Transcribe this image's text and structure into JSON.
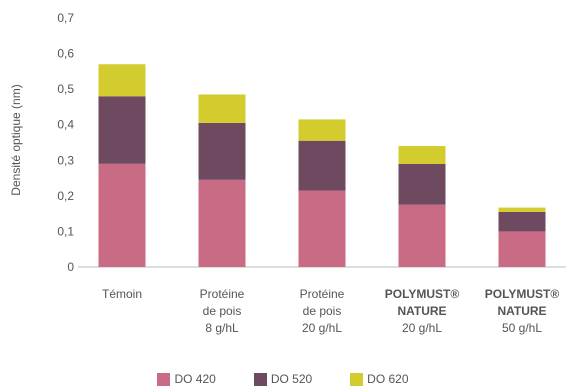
{
  "chart_data": {
    "type": "bar",
    "stacked": true,
    "ylabel": "Densité optique (nm)",
    "ylim": [
      0,
      0.7
    ],
    "yticks": [
      "0",
      "0,1",
      "0,2",
      "0,3",
      "0,4",
      "0,5",
      "0,6",
      "0,7"
    ],
    "categories": [
      {
        "lines": [
          {
            "text": "Témoin",
            "bold": false
          }
        ]
      },
      {
        "lines": [
          {
            "text": "Protéine",
            "bold": false
          },
          {
            "text": "de pois",
            "bold": false
          },
          {
            "text": "8 g/hL",
            "bold": false
          }
        ]
      },
      {
        "lines": [
          {
            "text": "Protéine",
            "bold": false
          },
          {
            "text": "de pois",
            "bold": false
          },
          {
            "text": "20 g/hL",
            "bold": false
          }
        ]
      },
      {
        "lines": [
          {
            "text": "POLYMUST®",
            "bold": true
          },
          {
            "text": "NATURE",
            "bold": true
          },
          {
            "text": "20 g/hL",
            "bold": false
          }
        ]
      },
      {
        "lines": [
          {
            "text": "POLYMUST®",
            "bold": true
          },
          {
            "text": "NATURE",
            "bold": true
          },
          {
            "text": "50 g/hL",
            "bold": false
          }
        ]
      }
    ],
    "series": [
      {
        "name": "DO 420",
        "color": "#c96b85",
        "values": [
          0.29,
          0.245,
          0.215,
          0.175,
          0.1
        ]
      },
      {
        "name": "DO 520",
        "color": "#6e4a60",
        "values": [
          0.19,
          0.16,
          0.14,
          0.115,
          0.055
        ]
      },
      {
        "name": "DO 620",
        "color": "#d2cc2e",
        "values": [
          0.09,
          0.08,
          0.06,
          0.05,
          0.012
        ]
      }
    ],
    "grid": false,
    "legend": "bottom-center"
  }
}
